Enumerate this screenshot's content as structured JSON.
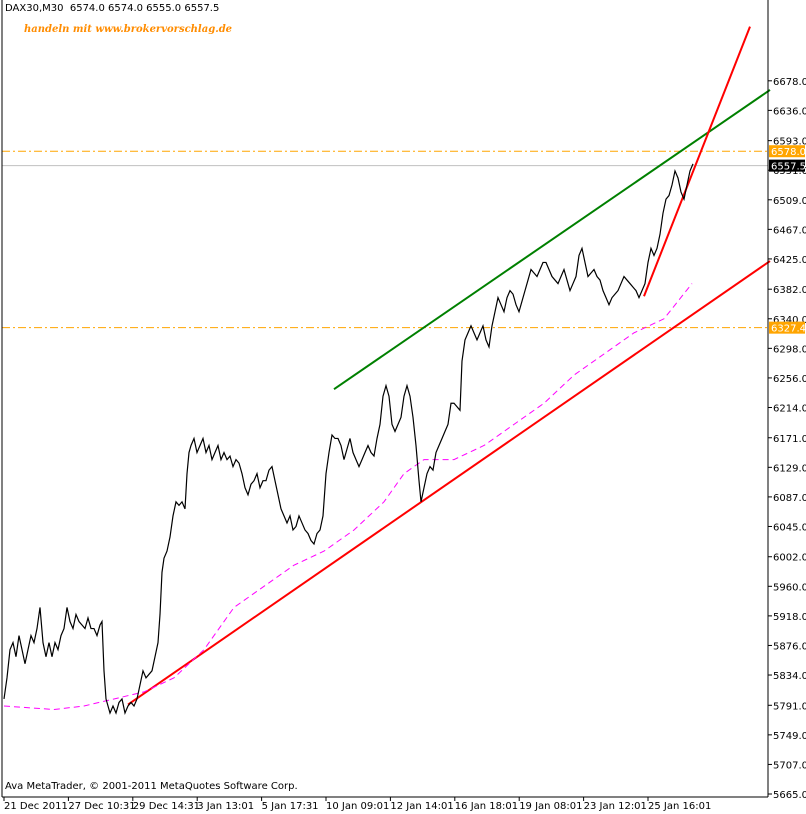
{
  "header": {
    "symbol": "DAX30,M30",
    "ohlc": "6574.0 6574.0 6555.0 6557.5"
  },
  "promo_text": "handeln mit www.brokervorschlag.de",
  "copyright": "Ava MetaTrader, © 2001-2011 MetaQuotes Software Corp.",
  "colors": {
    "price": "#000000",
    "channel_upper": "#008000",
    "trend": "#ff0000",
    "moving_average": "#ff00ff",
    "level_lines": "#ffa500",
    "label_text": "#ff8c00"
  },
  "chart_data": {
    "type": "line",
    "title": "DAX30,M30",
    "xlabel": "",
    "ylabel": "",
    "ylim": [
      5665.0,
      6755.0
    ],
    "grid": false,
    "y_ticks": [
      "6678.0",
      "6636.0",
      "6593.0",
      "6551.0",
      "6509.0",
      "6467.0",
      "6425.0",
      "6382.0",
      "6340.0",
      "6298.0",
      "6256.0",
      "6214.0",
      "6171.0",
      "6129.0",
      "6087.0",
      "6045.0",
      "6002.0",
      "5960.0",
      "5918.0",
      "5876.0",
      "5834.0",
      "5791.0",
      "5749.0",
      "5707.0",
      "5665.0"
    ],
    "x_ticks": [
      "21 Dec 2011",
      "27 Dec 10:31",
      "29 Dec 14:31",
      "3 Jan 13:01",
      "5 Jan 17:31",
      "10 Jan 09:01",
      "12 Jan 14:01",
      "16 Jan 18:01",
      "19 Jan 08:01",
      "23 Jan 12:01",
      "25 Jan 16:01"
    ],
    "levels": [
      {
        "value": 6578.0,
        "label": "6578.0"
      },
      {
        "value": 6327.4,
        "label": "6327.4"
      }
    ],
    "current_price": {
      "value": 6557.5,
      "label": "6557.5"
    },
    "series": [
      {
        "kind": "price",
        "points": [
          [
            0,
            5800
          ],
          [
            3,
            5830
          ],
          [
            6,
            5870
          ],
          [
            9,
            5880
          ],
          [
            12,
            5860
          ],
          [
            15,
            5890
          ],
          [
            18,
            5870
          ],
          [
            21,
            5850
          ],
          [
            24,
            5870
          ],
          [
            27,
            5890
          ],
          [
            30,
            5880
          ],
          [
            33,
            5900
          ],
          [
            36,
            5930
          ],
          [
            39,
            5880
          ],
          [
            42,
            5860
          ],
          [
            45,
            5880
          ],
          [
            48,
            5860
          ],
          [
            51,
            5880
          ],
          [
            54,
            5870
          ],
          [
            57,
            5890
          ],
          [
            60,
            5900
          ],
          [
            63,
            5930
          ],
          [
            66,
            5910
          ],
          [
            69,
            5900
          ],
          [
            72,
            5920
          ],
          [
            75,
            5910
          ],
          [
            78,
            5905
          ],
          [
            81,
            5900
          ],
          [
            84,
            5915
          ],
          [
            87,
            5900
          ],
          [
            90,
            5900
          ],
          [
            93,
            5890
          ],
          [
            96,
            5905
          ],
          [
            98,
            5910
          ],
          [
            100,
            5840
          ],
          [
            102,
            5800
          ],
          [
            104,
            5790
          ],
          [
            106,
            5780
          ],
          [
            109,
            5790
          ],
          [
            112,
            5780
          ],
          [
            115,
            5795
          ],
          [
            118,
            5800
          ],
          [
            121,
            5780
          ],
          [
            124,
            5790
          ],
          [
            127,
            5795
          ],
          [
            130,
            5790
          ],
          [
            133,
            5800
          ],
          [
            136,
            5820
          ],
          [
            139,
            5840
          ],
          [
            142,
            5830
          ],
          [
            145,
            5835
          ],
          [
            148,
            5840
          ],
          [
            151,
            5860
          ],
          [
            154,
            5880
          ],
          [
            156,
            5920
          ],
          [
            158,
            5980
          ],
          [
            160,
            6000
          ],
          [
            163,
            6010
          ],
          [
            166,
            6030
          ],
          [
            169,
            6060
          ],
          [
            172,
            6080
          ],
          [
            175,
            6075
          ],
          [
            178,
            6080
          ],
          [
            181,
            6070
          ],
          [
            183,
            6120
          ],
          [
            185,
            6150
          ],
          [
            187,
            6160
          ],
          [
            190,
            6170
          ],
          [
            193,
            6150
          ],
          [
            196,
            6160
          ],
          [
            199,
            6170
          ],
          [
            202,
            6150
          ],
          [
            205,
            6160
          ],
          [
            208,
            6140
          ],
          [
            211,
            6150
          ],
          [
            214,
            6160
          ],
          [
            217,
            6140
          ],
          [
            220,
            6150
          ],
          [
            223,
            6140
          ],
          [
            226,
            6145
          ],
          [
            229,
            6130
          ],
          [
            232,
            6140
          ],
          [
            235,
            6135
          ],
          [
            238,
            6120
          ],
          [
            241,
            6100
          ],
          [
            244,
            6090
          ],
          [
            247,
            6105
          ],
          [
            250,
            6110
          ],
          [
            253,
            6120
          ],
          [
            256,
            6100
          ],
          [
            259,
            6110
          ],
          [
            262,
            6110
          ],
          [
            265,
            6125
          ],
          [
            268,
            6130
          ],
          [
            271,
            6110
          ],
          [
            274,
            6090
          ],
          [
            277,
            6070
          ],
          [
            280,
            6060
          ],
          [
            283,
            6050
          ],
          [
            286,
            6060
          ],
          [
            289,
            6040
          ],
          [
            292,
            6045
          ],
          [
            295,
            6060
          ],
          [
            298,
            6050
          ],
          [
            301,
            6040
          ],
          [
            304,
            6035
          ],
          [
            307,
            6025
          ],
          [
            310,
            6020
          ],
          [
            313,
            6035
          ],
          [
            316,
            6040
          ],
          [
            319,
            6060
          ],
          [
            322,
            6120
          ],
          [
            325,
            6150
          ],
          [
            328,
            6175
          ],
          [
            331,
            6170
          ],
          [
            334,
            6170
          ],
          [
            337,
            6160
          ],
          [
            340,
            6140
          ],
          [
            343,
            6155
          ],
          [
            346,
            6170
          ],
          [
            349,
            6150
          ],
          [
            352,
            6140
          ],
          [
            355,
            6130
          ],
          [
            358,
            6140
          ],
          [
            361,
            6150
          ],
          [
            364,
            6160
          ],
          [
            367,
            6150
          ],
          [
            370,
            6145
          ],
          [
            373,
            6170
          ],
          [
            376,
            6190
          ],
          [
            379,
            6230
          ],
          [
            382,
            6245
          ],
          [
            385,
            6230
          ],
          [
            388,
            6190
          ],
          [
            391,
            6180
          ],
          [
            394,
            6190
          ],
          [
            397,
            6200
          ],
          [
            400,
            6230
          ],
          [
            403,
            6245
          ],
          [
            406,
            6230
          ],
          [
            409,
            6200
          ],
          [
            412,
            6160
          ],
          [
            415,
            6110
          ],
          [
            417,
            6080
          ],
          [
            420,
            6100
          ],
          [
            423,
            6120
          ],
          [
            426,
            6130
          ],
          [
            429,
            6125
          ],
          [
            432,
            6150
          ],
          [
            435,
            6160
          ],
          [
            438,
            6170
          ],
          [
            441,
            6180
          ],
          [
            444,
            6190
          ],
          [
            447,
            6220
          ],
          [
            450,
            6220
          ],
          [
            453,
            6215
          ],
          [
            456,
            6210
          ],
          [
            458,
            6280
          ],
          [
            461,
            6310
          ],
          [
            464,
            6320
          ],
          [
            467,
            6330
          ],
          [
            470,
            6320
          ],
          [
            473,
            6310
          ],
          [
            476,
            6320
          ],
          [
            479,
            6330
          ],
          [
            482,
            6310
          ],
          [
            485,
            6300
          ],
          [
            488,
            6330
          ],
          [
            491,
            6350
          ],
          [
            494,
            6370
          ],
          [
            497,
            6360
          ],
          [
            500,
            6350
          ],
          [
            503,
            6370
          ],
          [
            506,
            6380
          ],
          [
            509,
            6375
          ],
          [
            512,
            6360
          ],
          [
            515,
            6350
          ],
          [
            518,
            6365
          ],
          [
            521,
            6380
          ],
          [
            524,
            6395
          ],
          [
            527,
            6410
          ],
          [
            530,
            6405
          ],
          [
            533,
            6400
          ],
          [
            536,
            6410
          ],
          [
            539,
            6420
          ],
          [
            542,
            6420
          ],
          [
            545,
            6410
          ],
          [
            548,
            6400
          ],
          [
            551,
            6395
          ],
          [
            554,
            6390
          ],
          [
            557,
            6400
          ],
          [
            560,
            6410
          ],
          [
            563,
            6395
          ],
          [
            566,
            6380
          ],
          [
            569,
            6390
          ],
          [
            572,
            6400
          ],
          [
            575,
            6430
          ],
          [
            578,
            6440
          ],
          [
            581,
            6420
          ],
          [
            584,
            6400
          ],
          [
            587,
            6405
          ],
          [
            590,
            6410
          ],
          [
            593,
            6400
          ],
          [
            596,
            6395
          ],
          [
            599,
            6380
          ],
          [
            602,
            6370
          ],
          [
            605,
            6360
          ],
          [
            608,
            6370
          ],
          [
            611,
            6375
          ],
          [
            614,
            6380
          ],
          [
            617,
            6390
          ],
          [
            620,
            6400
          ],
          [
            623,
            6395
          ],
          [
            626,
            6390
          ],
          [
            629,
            6385
          ],
          [
            632,
            6380
          ],
          [
            635,
            6370
          ],
          [
            638,
            6380
          ],
          [
            641,
            6390
          ],
          [
            644,
            6420
          ],
          [
            647,
            6440
          ],
          [
            650,
            6430
          ],
          [
            653,
            6440
          ],
          [
            656,
            6460
          ],
          [
            659,
            6490
          ],
          [
            662,
            6510
          ],
          [
            665,
            6515
          ],
          [
            668,
            6530
          ],
          [
            671,
            6550
          ],
          [
            674,
            6540
          ],
          [
            677,
            6520
          ],
          [
            680,
            6510
          ],
          [
            683,
            6530
          ],
          [
            686,
            6550
          ],
          [
            689,
            6560
          ]
        ]
      },
      {
        "kind": "upper_channel",
        "points": [
          [
            330,
            6240.0
          ],
          [
            766,
            6665.0
          ]
        ]
      },
      {
        "kind": "lower_trend",
        "points": [
          [
            124,
            5792.0
          ],
          [
            766,
            6422.0
          ]
        ]
      },
      {
        "kind": "steep_trend",
        "points": [
          [
            640,
            6372.0
          ],
          [
            746,
            6755.0
          ]
        ]
      },
      {
        "kind": "moving_average",
        "points": [
          [
            0,
            5790
          ],
          [
            20,
            5788
          ],
          [
            50,
            5785
          ],
          [
            80,
            5790
          ],
          [
            110,
            5800
          ],
          [
            140,
            5810
          ],
          [
            170,
            5830
          ],
          [
            200,
            5870
          ],
          [
            230,
            5930
          ],
          [
            260,
            5960
          ],
          [
            290,
            5990
          ],
          [
            320,
            6010
          ],
          [
            350,
            6040
          ],
          [
            380,
            6080
          ],
          [
            400,
            6120
          ],
          [
            420,
            6140
          ],
          [
            450,
            6140
          ],
          [
            480,
            6160
          ],
          [
            510,
            6190
          ],
          [
            540,
            6220
          ],
          [
            570,
            6260
          ],
          [
            600,
            6290
          ],
          [
            630,
            6320
          ],
          [
            660,
            6340
          ],
          [
            688,
            6390
          ]
        ]
      }
    ]
  }
}
